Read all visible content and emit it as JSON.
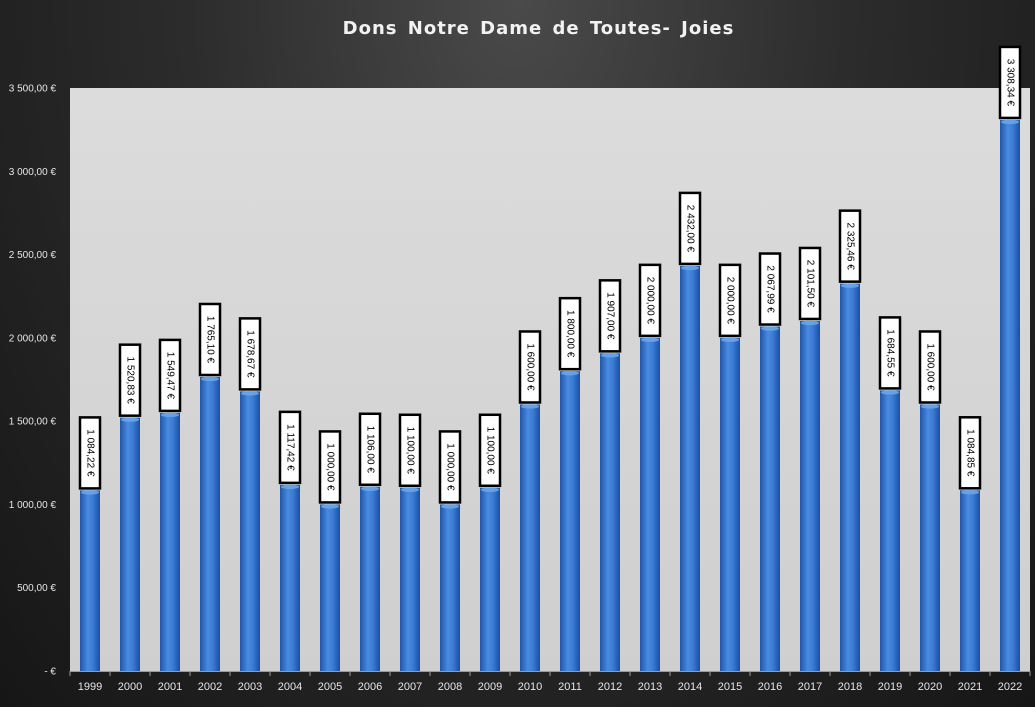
{
  "chart_data": {
    "type": "bar",
    "title": "Dons Notre Dame de Toutes- Joies",
    "xlabel": "",
    "ylabel": "",
    "categories": [
      "1999",
      "2000",
      "2001",
      "2002",
      "2003",
      "2004",
      "2005",
      "2006",
      "2007",
      "2008",
      "2009",
      "2010",
      "2011",
      "2012",
      "2013",
      "2014",
      "2015",
      "2016",
      "2017",
      "2018",
      "2019",
      "2020",
      "2021",
      "2022"
    ],
    "values": [
      1084.22,
      1520.83,
      1549.47,
      1765.1,
      1678.67,
      1117.42,
      1000.0,
      1106.0,
      1100.0,
      1000.0,
      1100.0,
      1600.0,
      1800.0,
      1907.0,
      2000.0,
      2432.0,
      2000.0,
      2067.99,
      2101.5,
      2325.46,
      1684.55,
      1600.0,
      1084.85,
      3308.34
    ],
    "data_labels": [
      "1 084,22 €",
      "1 520,83 €",
      "1 549,47 €",
      "1 765,10 €",
      "1 678,67 €",
      "1 117,42 €",
      "1 000,00 €",
      "1 106,00 €",
      "1 100,00 €",
      "1 000,00 €",
      "1 100,00 €",
      "1 600,00 €",
      "1 800,00 €",
      "1 907,00 €",
      "2 000,00 €",
      "2 432,00 €",
      "2 000,00 €",
      "2 067,99 €",
      "2 101,50 €",
      "2 325,46 €",
      "1 684,55 €",
      "1 600,00 €",
      "1 084,85 €",
      "3 308,34 €"
    ],
    "ylim": [
      0,
      3500
    ],
    "yticks": [
      0,
      500,
      1000,
      1500,
      2000,
      2500,
      3000,
      3500
    ],
    "ytick_labels": [
      "-   €",
      "500,00 €",
      "1 000,00 €",
      "1 500,00 €",
      "2 000,00 €",
      "2 500,00 €",
      "3 000,00 €",
      "3 500,00 €"
    ],
    "grid": false,
    "legend": "none",
    "colors": {
      "bar": "#3a7bd5",
      "bar_dark": "#1f56a8",
      "bar_light": "#6aa5ea",
      "plot_area": "#d9d9d9",
      "label_box": "#ffffff",
      "label_border": "#000000",
      "text": "#e6e6e6"
    }
  }
}
